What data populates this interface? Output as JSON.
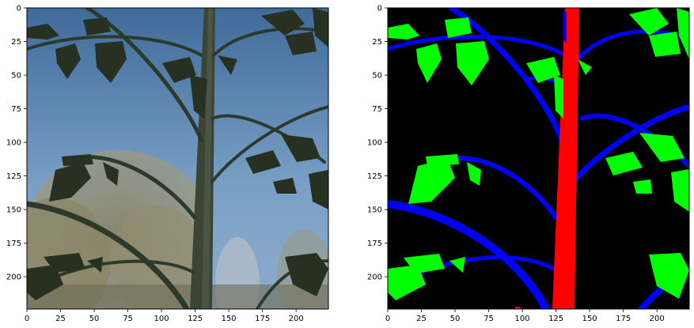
{
  "figure": {
    "panels": [
      {
        "name": "photo",
        "x_ticks": [
          "0",
          "25",
          "50",
          "75",
          "100",
          "125",
          "150",
          "175",
          "200"
        ],
        "y_ticks": [
          "0",
          "25",
          "50",
          "75",
          "100",
          "125",
          "150",
          "175",
          "200"
        ],
        "xlim": [
          0,
          224
        ],
        "ylim": [
          224,
          0
        ]
      },
      {
        "name": "segmentation-mask",
        "x_ticks": [
          "0",
          "25",
          "50",
          "75",
          "100",
          "125",
          "150",
          "175",
          "200"
        ],
        "y_ticks": [
          "0",
          "25",
          "50",
          "75",
          "100",
          "125",
          "150",
          "175",
          "200"
        ],
        "xlim": [
          0,
          224
        ],
        "ylim": [
          224,
          0
        ]
      }
    ],
    "colors": {
      "mask_background": "#000000",
      "stem": "#ff0000",
      "branches": "#0000ff",
      "leaves": "#00ff00",
      "sky_top": "#3f6b9a",
      "sky_bottom": "#86a9cc",
      "plant_dark": "#2a3226",
      "tree_brown": "#7d7558"
    }
  }
}
